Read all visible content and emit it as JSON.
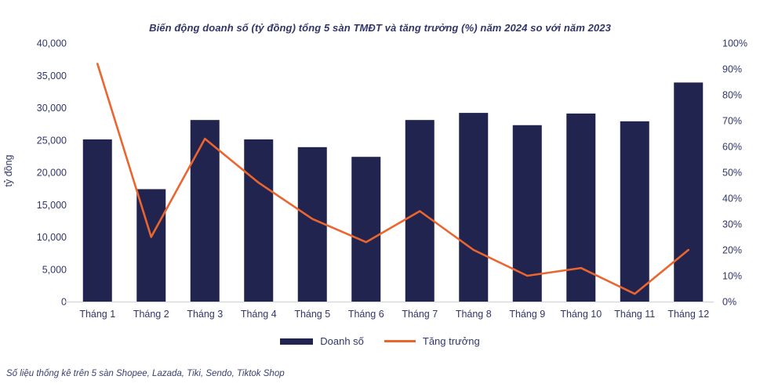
{
  "chart_data": {
    "type": "bar+line",
    "title": "Biến động doanh số (tỷ đồng) tổng 5 sàn TMĐT và tăng trưởng (%) năm 2024 so với năm 2023",
    "categories": [
      "Tháng 1",
      "Tháng 2",
      "Tháng 3",
      "Tháng 4",
      "Tháng 5",
      "Tháng 6",
      "Tháng 7",
      "Tháng 8",
      "Tháng 9",
      "Tháng 10",
      "Tháng 11",
      "Tháng 12"
    ],
    "series": [
      {
        "name": "Doanh số",
        "type": "bar",
        "axis": "left",
        "color": "#21244e",
        "values": [
          25100,
          17400,
          28100,
          25100,
          23900,
          22400,
          28100,
          29200,
          27300,
          29100,
          27900,
          33900
        ]
      },
      {
        "name": "Tăng trưởng",
        "type": "line",
        "axis": "right",
        "color": "#eb652f",
        "values": [
          92,
          25,
          63,
          46,
          32,
          23,
          35,
          20,
          10,
          13,
          3,
          20
        ]
      }
    ],
    "left_axis": {
      "label": "tỷ đồng",
      "min": 0,
      "max": 40000,
      "step": 5000
    },
    "right_axis": {
      "min": 0,
      "max": 100,
      "step": 10,
      "suffix": "%"
    },
    "legend_position": "bottom-center",
    "grid": false
  },
  "colors": {
    "bar": "#21244e",
    "line": "#eb652f",
    "text": "#303669",
    "axis_line": "#d9d9d9",
    "background": "#ffffff"
  },
  "footer": {
    "note": "Số liệu thống kê trên 5 sàn Shopee, Lazada, Tiki, Sendo, Tiktok Shop"
  }
}
